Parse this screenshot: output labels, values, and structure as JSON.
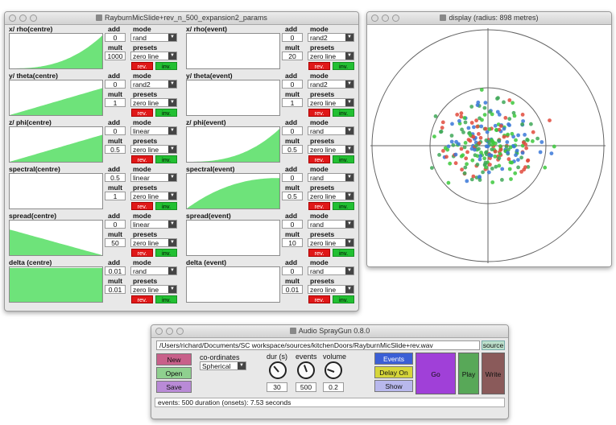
{
  "params_window": {
    "title": "RayburnMicSlide+rev_n_500_expansion2_params",
    "labels": {
      "add": "add",
      "mode": "mode",
      "mult": "mult",
      "presets": "presets",
      "rev": "rev.",
      "inv": "inv."
    },
    "rows": [
      {
        "left": {
          "name": "x/ rho(centre)",
          "add": "0",
          "mode": "rand",
          "mult": "1000",
          "preset": "zero line",
          "curve": "exp-rise"
        },
        "right": {
          "name": "x/ rho(event)",
          "add": "0",
          "mode": "rand2",
          "mult": "20",
          "preset": "zero line",
          "curve": "empty"
        }
      },
      {
        "left": {
          "name": "y/ theta(centre)",
          "add": "0",
          "mode": "rand2",
          "mult": "1",
          "preset": "zero line",
          "curve": "linear-rise"
        },
        "right": {
          "name": "y/ theta(event)",
          "add": "0",
          "mode": "rand2",
          "mult": "1",
          "preset": "zero line",
          "curve": "empty"
        }
      },
      {
        "left": {
          "name": "z/ phi(centre)",
          "add": "0",
          "mode": "linear",
          "mult": "0.5",
          "preset": "zero line",
          "curve": "linear-rise"
        },
        "right": {
          "name": "z/ phi(event)",
          "add": "0",
          "mode": "rand",
          "mult": "0.5",
          "preset": "zero line",
          "curve": "exp-rise"
        }
      },
      {
        "left": {
          "name": "spectral(centre)",
          "add": "0.5",
          "mode": "linear",
          "mult": "1",
          "preset": "zero line",
          "curve": "empty"
        },
        "right": {
          "name": "spectral(event)",
          "add": "0",
          "mode": "rand",
          "mult": "0.5",
          "preset": "zero line",
          "curve": "log-rise"
        }
      },
      {
        "left": {
          "name": "spread(centre)",
          "add": "0",
          "mode": "linear",
          "mult": "50",
          "preset": "zero line",
          "curve": "linear-fall"
        },
        "right": {
          "name": "spread(event)",
          "add": "0",
          "mode": "rand",
          "mult": "10",
          "preset": "zero line",
          "curve": "empty"
        }
      },
      {
        "left": {
          "name": "delta (centre)",
          "add": "0.01",
          "mode": "rand",
          "mult": "0.01",
          "preset": "zero line",
          "curve": "flat-full"
        },
        "right": {
          "name": "delta (event)",
          "add": "0",
          "mode": "rand",
          "mult": "0.01",
          "preset": "zero line",
          "curve": "empty"
        }
      }
    ]
  },
  "display_window": {
    "title": "display (radius: 898 metres)",
    "dot_colors": [
      "#e04a3c",
      "#3a78d8",
      "#3cc83c",
      "#40a858"
    ]
  },
  "spraygun_window": {
    "title": "Audio SprayGun 0.8.0",
    "path": "/Users/richard/Documents/SC workspace/sources/kitchenDoors/RayburnMicSlide+rev.wav",
    "source_label": "source",
    "buttons": {
      "new": "New",
      "open": "Open",
      "save": "Save",
      "events": "Events",
      "delay_on": "Delay On",
      "show": "Show",
      "go": "Go",
      "play": "Play",
      "write": "Write"
    },
    "coordinates_label": "co-ordinates",
    "coordinates_value": "Spherical",
    "dur_label": "dur (s)",
    "dur_value": "30",
    "events_label": "events",
    "events_value": "500",
    "volume_label": "volume",
    "volume_value": "0.2",
    "status": "events: 500   duration (onsets): 7.53 seconds",
    "colors": {
      "new": "#c8608a",
      "open": "#8fd08f",
      "save": "#b98ad6",
      "events": "#3b5fd6",
      "delay_on": "#d6d63a",
      "show": "#b8b8ec",
      "go": "#a040d8",
      "play": "#58a858",
      "write": "#8a5a5a"
    }
  }
}
